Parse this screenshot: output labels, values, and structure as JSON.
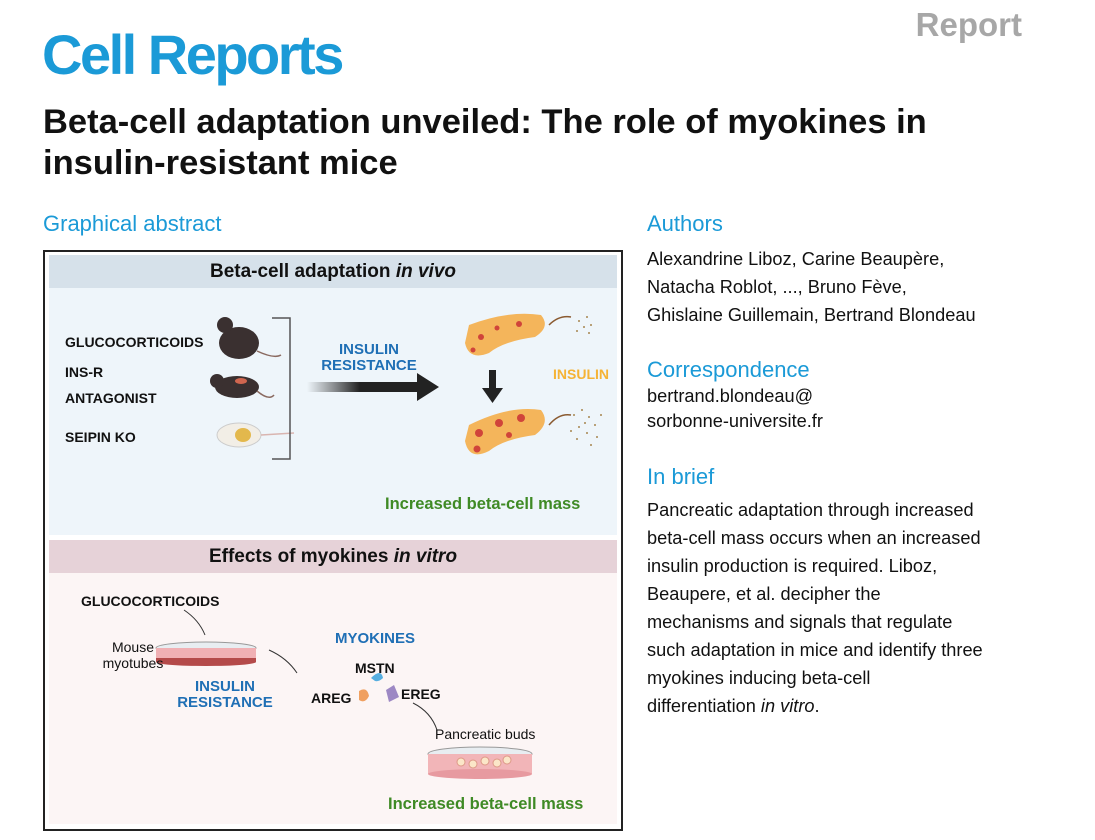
{
  "header": {
    "journal": "Cell Reports",
    "article_type": "Report"
  },
  "title": "Beta-cell adaptation unveiled: The role of myokines in insulin-resistant mice",
  "graphical_abstract": {
    "heading": "Graphical abstract",
    "panel1": {
      "title": "Beta-cell adaptation ",
      "title_italic": "in vivo",
      "models": [
        "GLUCOCORTICOIDS",
        "INS-R",
        "ANTAGONIST",
        "SEIPIN KO"
      ],
      "arrow_label_1": "INSULIN",
      "arrow_label_2": "RESISTANCE",
      "insulin": "INSULIN",
      "outcome": "Increased beta-cell mass"
    },
    "panel2": {
      "title": "Effects of myokines ",
      "title_italic": "in vitro",
      "treatment": "GLUCOCORTICOIDS",
      "cells_1": "Mouse",
      "cells_2": "myotubes",
      "state_1": "INSULIN",
      "state_2": "RESISTANCE",
      "myokines": "MYOKINES",
      "mstn": "MSTN",
      "areg": "AREG",
      "ereg": "EREG",
      "target": "Pancreatic buds",
      "outcome": "Increased beta-cell mass"
    }
  },
  "authors": {
    "heading": "Authors",
    "lines": [
      "Alexandrine Liboz, Carine Beaupère,",
      "Natacha Roblot, ..., Bruno Fève,",
      "Ghislaine Guillemain, Bertrand Blondeau"
    ]
  },
  "correspondence": {
    "heading": "Correspondence",
    "lines": [
      "bertrand.blondeau@",
      "sorbonne-universite.fr"
    ]
  },
  "in_brief": {
    "heading": "In brief",
    "lines": [
      "Pancreatic adaptation through increased",
      "beta-cell mass occurs when an increased",
      "insulin production is required. Liboz,",
      "Beaupere, et al. decipher the",
      "mechanisms and signals that regulate",
      "such adaptation in mice and identify three",
      "myokines inducing beta-cell"
    ],
    "last_text": "differentiation ",
    "last_italic": "in vitro",
    "last_end": "."
  },
  "colors": {
    "brand": "#1b9ad7",
    "green": "#3f8a25",
    "blue_label": "#1f6fb5",
    "insulin": "#f5b335"
  }
}
